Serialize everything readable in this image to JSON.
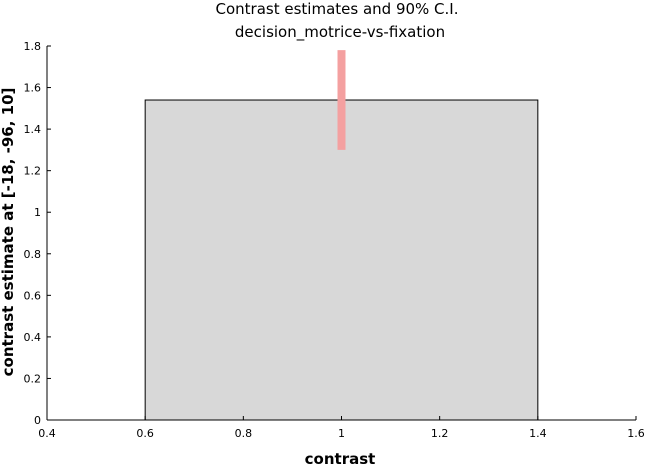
{
  "chart_data": {
    "type": "bar",
    "title": [
      "Contrast estimates and 90% C.I.",
      "decision_motrice-vs-fixation"
    ],
    "xlabel": "contrast",
    "ylabel": "contrast estimate at [-18, -96, 10]",
    "xlim": [
      0.4,
      1.6
    ],
    "ylim": [
      0,
      1.8
    ],
    "xticks": [
      "0.4",
      "0.6",
      "0.8",
      "1",
      "1.2",
      "1.4",
      "1.6"
    ],
    "yticks": [
      "0",
      "0.2",
      "0.4",
      "0.6",
      "0.8",
      "1",
      "1.2",
      "1.4",
      "1.6",
      "1.8"
    ],
    "bars": [
      {
        "x": 1,
        "width": 0.8,
        "value": 1.54
      }
    ],
    "error_bars": [
      {
        "x": 1,
        "low": 1.3,
        "high": 1.78
      }
    ],
    "grid": false,
    "colors": {
      "bar_fill": "#d8d8d8",
      "bar_stroke": "#000000",
      "error_bar": "#f4a0a0",
      "axis": "#000000"
    }
  }
}
